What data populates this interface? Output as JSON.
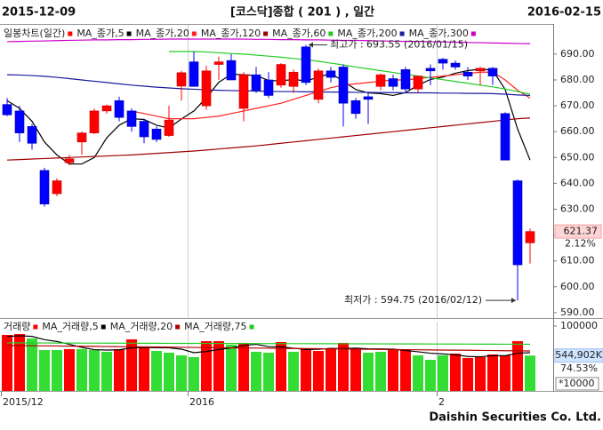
{
  "header": {
    "start_date": "2015-12-09",
    "title": "[코스닥]종합 ( 201 ) , 일간",
    "end_date": "2016-02-15"
  },
  "footer": "Daishin Securities Co. Ltd.",
  "chart_data": [
    {
      "type": "candlestick",
      "legend_title": "일봉차트(일간)",
      "categories": [
        "2015/12",
        null,
        null,
        null,
        null,
        null,
        null,
        null,
        null,
        null,
        null,
        null,
        null,
        null,
        null,
        "2016",
        null,
        null,
        null,
        null,
        null,
        null,
        null,
        null,
        null,
        null,
        null,
        null,
        null,
        null,
        null,
        null,
        null,
        null,
        null,
        "2",
        null,
        null,
        null,
        null,
        null,
        null,
        null
      ],
      "open": [
        670.5,
        668,
        662,
        645,
        636,
        648,
        656,
        659.5,
        668,
        672,
        668,
        664,
        661,
        658.5,
        677.6,
        687,
        670,
        686,
        687.5,
        669,
        682,
        680,
        678,
        677.5,
        692.8,
        672.5,
        683.5,
        685,
        672,
        673.5,
        677.5,
        680.5,
        684,
        676.5,
        684.5,
        688,
        686.5,
        683,
        683.5,
        684.5,
        667,
        641,
        617
      ],
      "high": [
        673,
        670,
        663,
        646,
        642,
        651,
        660,
        669,
        670.5,
        673.5,
        669,
        665,
        662,
        670,
        683.5,
        691,
        685.5,
        689,
        690,
        683,
        685,
        683,
        686.5,
        684,
        693.55,
        684.5,
        685,
        686,
        673,
        675,
        682.5,
        682,
        685,
        681.5,
        686,
        688.5,
        687.5,
        685,
        685,
        685,
        667.5,
        641.5,
        622.5
      ],
      "low": [
        666,
        656,
        653,
        631,
        635,
        647,
        651,
        659,
        667,
        664,
        660,
        655.5,
        656,
        658,
        672,
        678,
        668.5,
        680,
        680,
        664,
        675,
        673,
        677,
        675,
        678,
        671,
        679,
        662,
        665,
        663,
        676,
        676,
        675,
        675,
        678,
        684,
        684,
        680,
        678,
        678,
        649,
        594.75,
        609
      ],
      "close": [
        666.5,
        659.5,
        655.5,
        632,
        641,
        649.5,
        659.5,
        668,
        670,
        665.5,
        662,
        658,
        657,
        664.5,
        682.8,
        677.5,
        683.5,
        687,
        680,
        682,
        676,
        674,
        686,
        683,
        679,
        683.5,
        681,
        671,
        667,
        672.5,
        682,
        677.5,
        676.5,
        681.5,
        683.5,
        686.5,
        685,
        681.5,
        684.5,
        681.5,
        649,
        608.5,
        621.37
      ],
      "up_color": "#ff0000",
      "down_color": "#0000ff",
      "series": [
        {
          "name": "MA_종가,5",
          "color": "#000000",
          "values": [
            672,
            669,
            664,
            656,
            651,
            647.5,
            647.5,
            650,
            657.6,
            662.5,
            665,
            664.7,
            662.5,
            661.4,
            664.9,
            668,
            673.1,
            679.1,
            682.2,
            682,
            681.7,
            679.8,
            679.6,
            680.2,
            679.6,
            681.1,
            682.5,
            679.5,
            676.3,
            675,
            674.7,
            674,
            675.1,
            678,
            680.2,
            681.1,
            682.6,
            683.6,
            684.2,
            683.8,
            676.3,
            661,
            649
          ]
        },
        {
          "name": "MA_종가,20",
          "color": "#ff2020",
          "values": [
            null,
            null,
            null,
            null,
            null,
            null,
            null,
            null,
            null,
            null,
            668,
            667,
            666,
            665,
            665,
            665,
            665.5,
            666,
            667,
            668,
            669,
            670,
            671,
            672.5,
            674,
            675.5,
            677,
            678,
            678.5,
            679,
            679.5,
            680,
            680,
            680.5,
            681,
            681.5,
            682,
            682.5,
            683,
            683,
            680,
            676,
            673
          ]
        },
        {
          "name": "MA_종가,120",
          "color": "#a00000",
          "values": [
            649,
            649.2,
            649.4,
            649.6,
            649.8,
            650,
            650.2,
            650.4,
            650.6,
            650.8,
            651,
            651.3,
            651.6,
            651.9,
            652.2,
            652.5,
            652.9,
            653.3,
            653.7,
            654.1,
            654.5,
            655,
            655.5,
            656,
            656.5,
            657,
            657.5,
            658,
            658.5,
            659,
            659.5,
            660,
            660.5,
            661,
            661.5,
            662,
            662.5,
            663,
            663.5,
            664,
            664.5,
            665,
            665.3
          ]
        },
        {
          "name": "MA_종가,60",
          "color": "#22cc22",
          "values": [
            null,
            null,
            null,
            null,
            null,
            null,
            null,
            null,
            null,
            null,
            null,
            null,
            null,
            691,
            691,
            691,
            690.8,
            690.5,
            690.2,
            690,
            689.6,
            689.2,
            688.8,
            688.3,
            687.8,
            687.2,
            686.5,
            685.8,
            685,
            684.3,
            683.6,
            682.9,
            682.2,
            681.5,
            680.8,
            680.1,
            679.4,
            678.7,
            678,
            677.3,
            676.5,
            675.5,
            674.5
          ]
        },
        {
          "name": "MA_종가,200",
          "color": "#1a1aa0",
          "values": [
            682,
            681.9,
            681.7,
            681.4,
            681,
            680.5,
            680,
            679.5,
            679,
            678.5,
            678,
            677.6,
            677.2,
            676.9,
            676.6,
            676.4,
            676.2,
            676,
            675.9,
            675.8,
            675.7,
            675.6,
            675.5,
            675.5,
            675.4,
            675.4,
            675.3,
            675.3,
            675.2,
            675.2,
            675.1,
            675.1,
            675,
            675,
            675,
            674.9,
            674.9,
            674.8,
            674.8,
            674.7,
            674.5,
            674.2,
            674
          ]
        },
        {
          "name": "MA_종가,300",
          "color": "#cc00cc",
          "values": [
            694.8,
            694.9,
            695,
            695.1,
            695.2,
            695.3,
            695.4,
            695.5,
            695.5,
            695.6,
            695.6,
            695.7,
            695.7,
            695.8,
            695.8,
            695.8,
            695.8,
            695.8,
            695.8,
            695.8,
            695.7,
            695.7,
            695.6,
            695.6,
            695.5,
            695.5,
            695.4,
            695.3,
            695.3,
            695.2,
            695.1,
            695,
            694.9,
            694.9,
            694.8,
            694.7,
            694.6,
            694.5,
            694.4,
            694.3,
            694.2,
            694.1,
            694
          ]
        }
      ],
      "ylim": [
        587.9,
        701.3
      ],
      "yticks": [
        {
          "value": 590,
          "label": "590.00"
        },
        {
          "value": 600,
          "label": "600.00"
        },
        {
          "value": 610,
          "label": "610.00"
        },
        {
          "value": 620,
          "label": "620.00"
        },
        {
          "value": 630,
          "label": "630.00"
        },
        {
          "value": 640,
          "label": "640.00"
        },
        {
          "value": 650,
          "label": "650.00"
        },
        {
          "value": 660,
          "label": "660.00"
        },
        {
          "value": 670,
          "label": "670.00"
        },
        {
          "value": 680,
          "label": "680.00"
        },
        {
          "value": 690,
          "label": "690.00"
        }
      ],
      "grid": false,
      "annotations": [
        {
          "text": "최고가 : 693.55 (2016/01/15)",
          "color": "#e02020"
        },
        {
          "text": "최저가 : 594.75 (2016/02/12)",
          "color": "#2020c0"
        }
      ],
      "change": {
        "value": 2.12,
        "label": "2.12%"
      }
    },
    {
      "type": "bar",
      "series_name": "거래량",
      "values": [
        86300,
        87700,
        80800,
        63000,
        63000,
        64400,
        64400,
        63000,
        60300,
        64400,
        79500,
        67100,
        61600,
        58900,
        54800,
        52100,
        76700,
        76700,
        71200,
        74000,
        60300,
        58900,
        75300,
        60300,
        64400,
        61600,
        65800,
        74000,
        64400,
        58900,
        60300,
        64400,
        63000,
        54800,
        47900,
        54800,
        57500,
        50700,
        52100,
        56200,
        54800,
        76700,
        54490.2
      ],
      "value_labels": [
        null,
        null,
        null,
        null,
        null,
        null,
        null,
        null,
        null,
        null,
        null,
        null,
        null,
        null,
        null,
        null,
        null,
        null,
        null,
        null,
        null,
        null,
        null,
        null,
        null,
        null,
        null,
        null,
        null,
        null,
        null,
        null,
        null,
        null,
        null,
        null,
        null,
        null,
        null,
        null,
        null,
        null,
        "544,902K"
      ],
      "colors": [
        "#ff0000",
        "#ff0000",
        "#33dd33",
        "#33dd33",
        "#33dd33",
        "#ff0000",
        "#33dd33",
        "#33dd33",
        "#33dd33",
        "#ff0000",
        "#ff0000",
        "#ff0000",
        "#33dd33",
        "#33dd33",
        "#33dd33",
        "#33dd33",
        "#ff0000",
        "#ff0000",
        "#33dd33",
        "#ff0000",
        "#33dd33",
        "#33dd33",
        "#ff0000",
        "#33dd33",
        "#ff0000",
        "#ff0000",
        "#ff0000",
        "#ff0000",
        "#ff0000",
        "#33dd33",
        "#33dd33",
        "#ff0000",
        "#ff0000",
        "#33dd33",
        "#33dd33",
        "#33dd33",
        "#ff0000",
        "#ff0000",
        "#ff0000",
        "#ff0000",
        "#ff0000",
        "#ff0000",
        "#33dd33"
      ],
      "series": [
        {
          "name": "MA_거래량,5",
          "color": "#000000",
          "values": [
            84000,
            85000,
            84000,
            79000,
            76200,
            71800,
            67100,
            63600,
            63000,
            63300,
            66300,
            66900,
            66600,
            66300,
            64400,
            58900,
            60800,
            63800,
            66300,
            70100,
            71800,
            68200,
            67900,
            65800,
            63800,
            64100,
            65500,
            65200,
            66000,
            64900,
            64700,
            64400,
            62200,
            60300,
            58100,
            57000,
            55600,
            53100,
            52600,
            54300,
            54300,
            58100,
            58900
          ]
        },
        {
          "name": "MA_거래량,20",
          "color": "#b00000",
          "values": [
            70000,
            69800,
            69600,
            69400,
            69200,
            69000,
            68800,
            68600,
            68400,
            68200,
            68000,
            67800,
            67600,
            67400,
            67200,
            67000,
            66800,
            66600,
            66400,
            66200,
            66000,
            65800,
            65600,
            65400,
            65200,
            65000,
            64800,
            64600,
            64400,
            64200,
            64000,
            63800,
            63600,
            63400,
            63200,
            63000,
            62800,
            62600,
            62400,
            62200,
            62000,
            61800,
            61600
          ]
        },
        {
          "name": "MA_거래량,75",
          "color": "#22cc22",
          "values": [
            74000,
            73950,
            73900,
            73850,
            73800,
            73750,
            73700,
            73650,
            73600,
            73550,
            73500,
            73450,
            73400,
            73350,
            73300,
            73250,
            73200,
            73150,
            73100,
            73050,
            73000,
            72950,
            72900,
            72850,
            72800,
            72750,
            72700,
            72650,
            72600,
            72550,
            72500,
            72450,
            72400,
            72350,
            72300,
            72250,
            72200,
            72150,
            72100,
            72050,
            72000,
            71950,
            71900
          ]
        }
      ],
      "ylim": [
        0,
        106800
      ],
      "yticks": [
        100000
      ],
      "unit": "*10000",
      "ratio": {
        "value": 74.53,
        "label": "74.53%"
      }
    }
  ]
}
